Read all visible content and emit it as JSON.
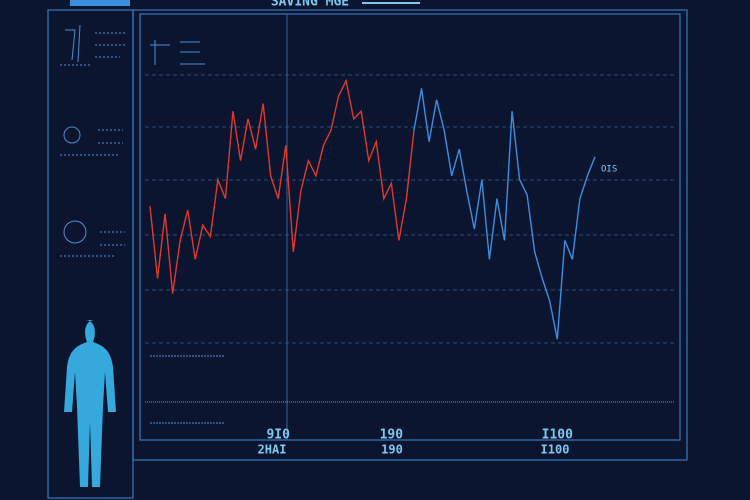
{
  "header": {
    "title": "SAVING MGE"
  },
  "chart_data": {
    "type": "line",
    "categories": [
      null,
      null,
      null,
      null,
      null,
      null,
      null,
      null,
      null,
      null,
      null,
      null,
      null,
      null,
      null,
      null,
      null,
      "9I0",
      null,
      null,
      null,
      null,
      null,
      null,
      null,
      null,
      null,
      null,
      null,
      null,
      null,
      null,
      "190",
      null,
      null,
      null,
      null,
      null,
      null,
      null,
      null,
      null,
      null,
      null,
      null,
      null,
      null,
      null,
      null,
      null,
      null,
      null,
      null,
      null,
      "I100",
      null,
      null,
      null,
      null,
      null
    ],
    "ylim": [
      0,
      100
    ],
    "series": [
      {
        "name": "red",
        "color": "#e0392b",
        "values": [
          51,
          32,
          49,
          28,
          42,
          50,
          37,
          46,
          43,
          58,
          53,
          76,
          63,
          74,
          66,
          78,
          59,
          53,
          67,
          39,
          55,
          63,
          59,
          67,
          71,
          80,
          84,
          74,
          76,
          63,
          68,
          53,
          57,
          42,
          53,
          71,
          null,
          null,
          null,
          null,
          null,
          null,
          null,
          null,
          null,
          null,
          null,
          null,
          null,
          null,
          null,
          null,
          null,
          null,
          null,
          null,
          null,
          null,
          null,
          null
        ]
      },
      {
        "name": "OIS",
        "color": "#3a8fe0",
        "values": [
          null,
          null,
          null,
          null,
          null,
          null,
          null,
          null,
          null,
          null,
          null,
          null,
          null,
          null,
          null,
          null,
          null,
          null,
          null,
          null,
          null,
          null,
          null,
          null,
          null,
          null,
          null,
          null,
          null,
          null,
          null,
          null,
          null,
          null,
          null,
          71,
          82,
          68,
          79,
          71,
          59,
          66,
          55,
          45,
          58,
          37,
          53,
          42,
          76,
          58,
          54,
          39,
          32,
          26,
          16,
          42,
          37,
          53,
          59,
          64
        ]
      }
    ],
    "footer": [
      "2HAI",
      "190",
      "I100"
    ]
  }
}
